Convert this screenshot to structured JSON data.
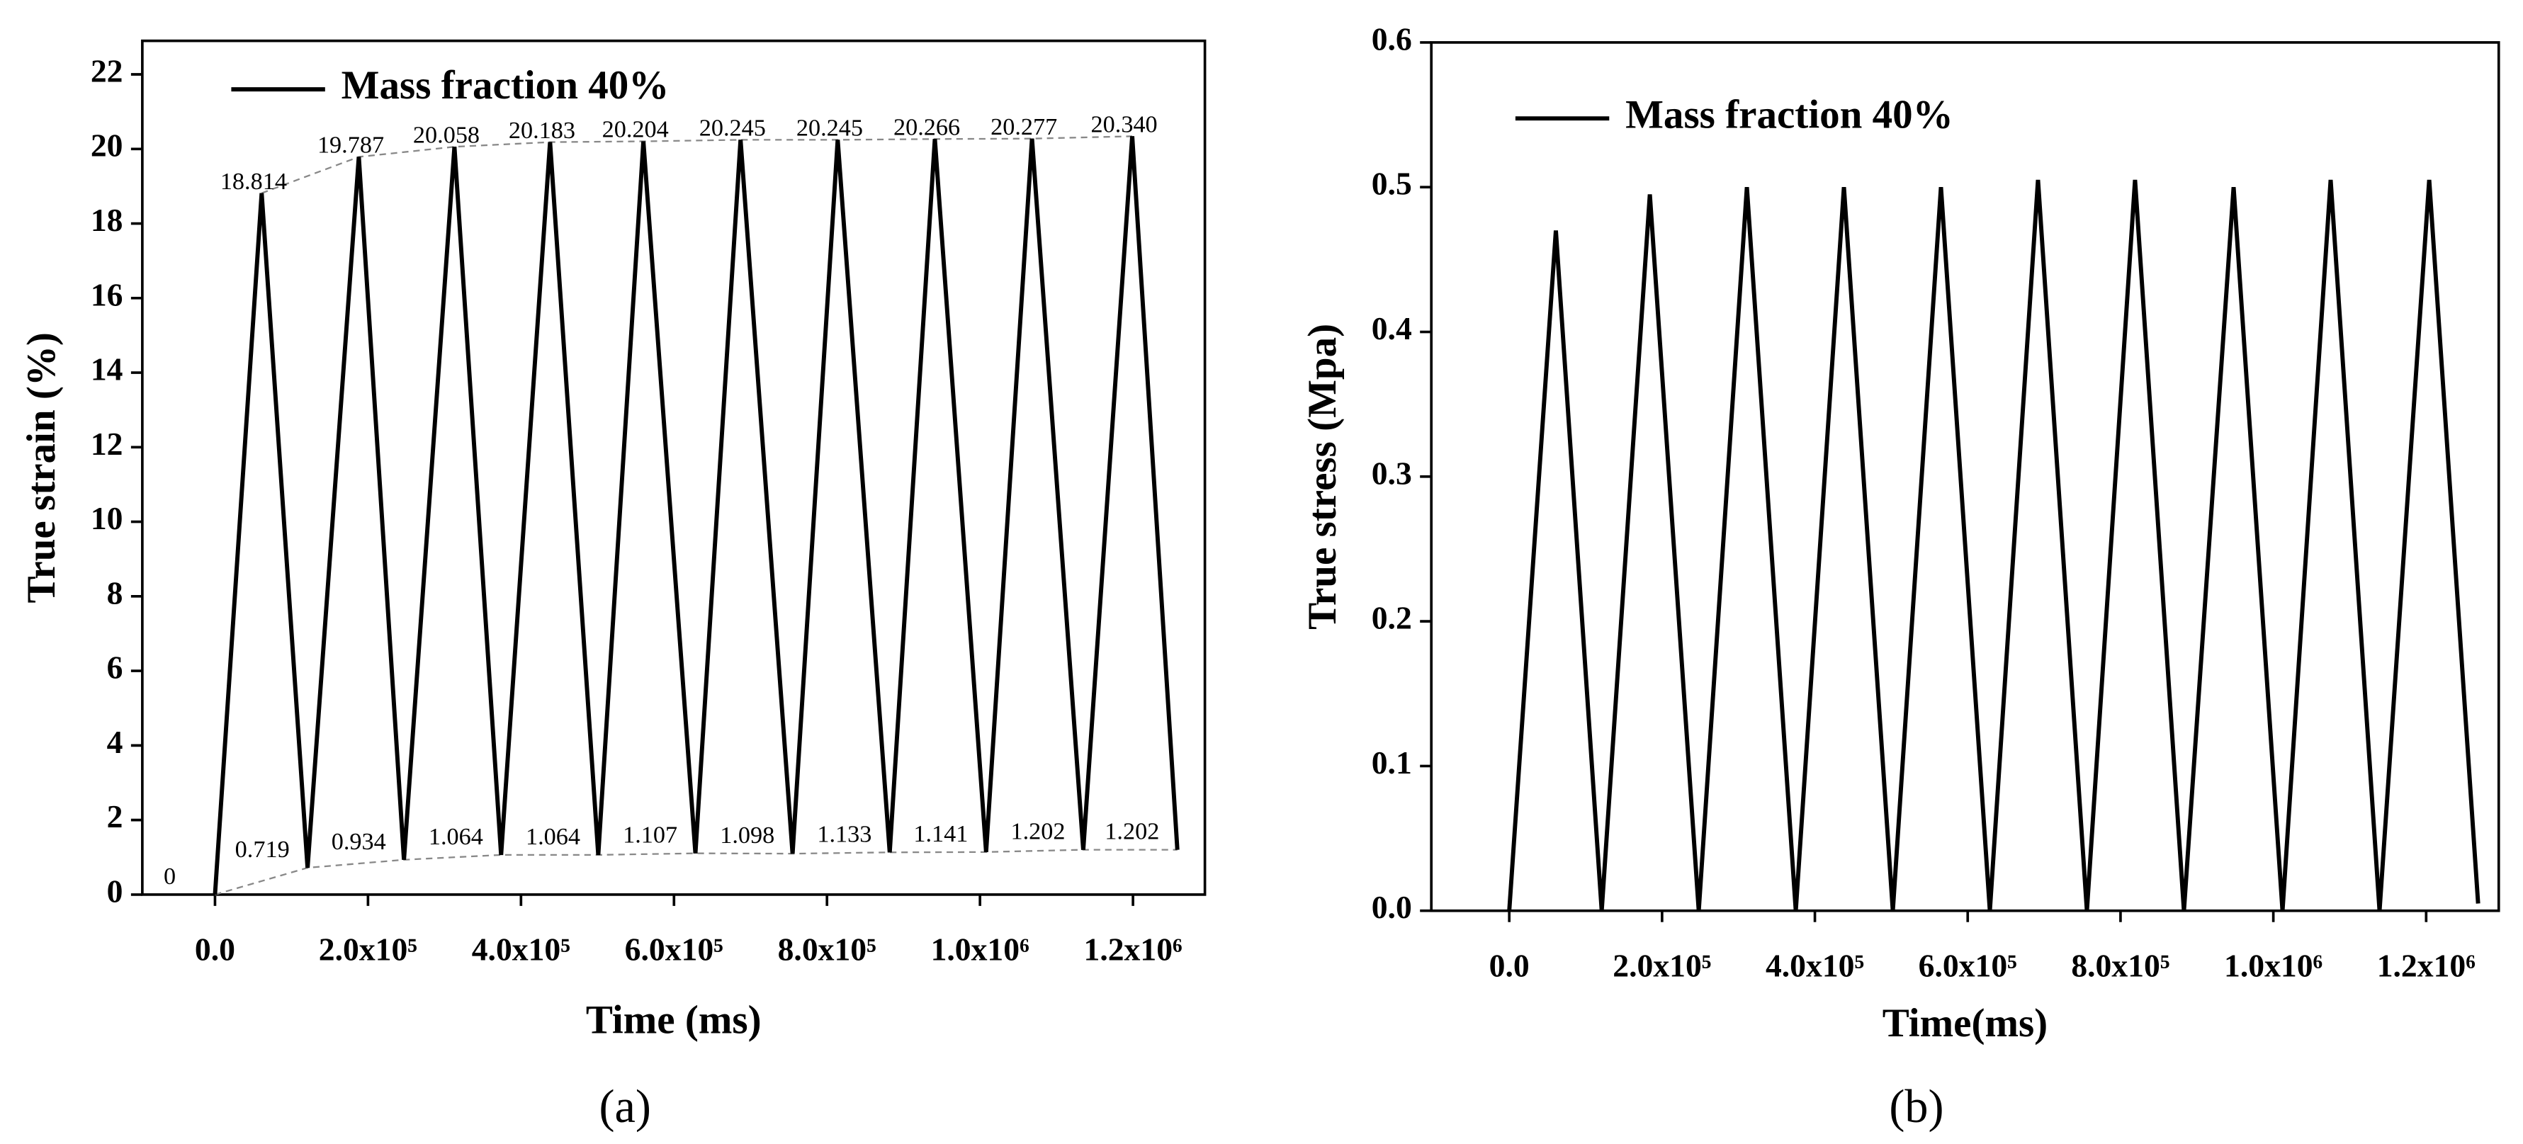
{
  "chart_data": [
    {
      "type": "line",
      "caption": "(a)",
      "xlabel": "Time (ms)",
      "ylabel": "True strain (%)",
      "legend": "upper left",
      "xlim": [
        -95000,
        1294000
      ],
      "ylim": [
        0,
        22.9
      ],
      "xticks": [
        {
          "value": 0,
          "label": "0.0"
        },
        {
          "value": 200000,
          "label": "2.0x10⁵"
        },
        {
          "value": 400000,
          "label": "4.0x10⁵"
        },
        {
          "value": 600000,
          "label": "6.0x10⁵"
        },
        {
          "value": 800000,
          "label": "8.0x10⁵"
        },
        {
          "value": 1000000,
          "label": "1.0x10⁶"
        },
        {
          "value": 1200000,
          "label": "1.2x10⁶"
        }
      ],
      "yticks": [
        0,
        2,
        4,
        6,
        8,
        10,
        12,
        14,
        16,
        18,
        20,
        22
      ],
      "series": [
        {
          "name": "Mass fraction 40%",
          "color": "#000000",
          "x": [
            0,
            61000,
            121000,
            188000,
            247000,
            313000,
            374000,
            438000,
            501000,
            560000,
            628000,
            687000,
            755000,
            814000,
            882000,
            941000,
            1008000,
            1068000,
            1135000,
            1199000,
            1258000
          ],
          "values": [
            0,
            18.814,
            0.719,
            19.787,
            0.934,
            20.058,
            1.064,
            20.183,
            1.064,
            20.204,
            1.107,
            20.245,
            1.098,
            20.245,
            1.133,
            20.266,
            1.141,
            20.277,
            1.202,
            20.34,
            1.202
          ]
        }
      ],
      "peaks": {
        "x": [
          61000,
          188000,
          313000,
          438000,
          560000,
          687000,
          814000,
          941000,
          1068000,
          1199000
        ],
        "values": [
          18.814,
          19.787,
          20.058,
          20.183,
          20.204,
          20.245,
          20.245,
          20.266,
          20.277,
          20.34
        ],
        "value_labels": [
          "18.814",
          "19.787",
          "20.058",
          "20.183",
          "20.204",
          "20.245",
          "20.245",
          "20.266",
          "20.277",
          "20.340"
        ]
      },
      "troughs": {
        "x": [
          0,
          121000,
          247000,
          374000,
          501000,
          628000,
          755000,
          882000,
          1008000,
          1135000,
          1258000
        ],
        "values": [
          0,
          0.719,
          0.934,
          1.064,
          1.064,
          1.107,
          1.098,
          1.133,
          1.141,
          1.202,
          1.202
        ]
      }
    },
    {
      "type": "line",
      "caption": "(b)",
      "xlabel": "Time(ms)",
      "ylabel": "True stress (Mpa)",
      "legend": "upper left",
      "xlim": [
        -102000,
        1295000
      ],
      "ylim": [
        0,
        0.6
      ],
      "xticks": [
        {
          "value": 0,
          "label": "0.0"
        },
        {
          "value": 200000,
          "label": "2.0x10⁵"
        },
        {
          "value": 400000,
          "label": "4.0x10⁵"
        },
        {
          "value": 600000,
          "label": "6.0x10⁵"
        },
        {
          "value": 800000,
          "label": "8.0x10⁵"
        },
        {
          "value": 1000000,
          "label": "1.0x10⁶"
        },
        {
          "value": 1200000,
          "label": "1.2x10⁶"
        }
      ],
      "yticks": [
        {
          "value": 0,
          "label": "0.0"
        },
        0.1,
        0.2,
        0.3,
        0.4,
        0.5,
        0.6
      ],
      "series": [
        {
          "name": "Mass fraction 40%",
          "color": "#000000",
          "x": [
            0,
            61000,
            121000,
            184000,
            248000,
            311000,
            375000,
            438000,
            502000,
            565000,
            629000,
            692000,
            756000,
            819000,
            883000,
            948000,
            1012000,
            1075000,
            1139000,
            1204000,
            1268000
          ],
          "values": [
            0,
            0.47,
            0,
            0.495,
            0,
            0.5,
            0,
            0.5,
            0,
            0.5,
            0,
            0.505,
            0,
            0.505,
            0,
            0.5,
            0,
            0.505,
            0,
            0.505,
            0.005
          ]
        }
      ]
    }
  ]
}
